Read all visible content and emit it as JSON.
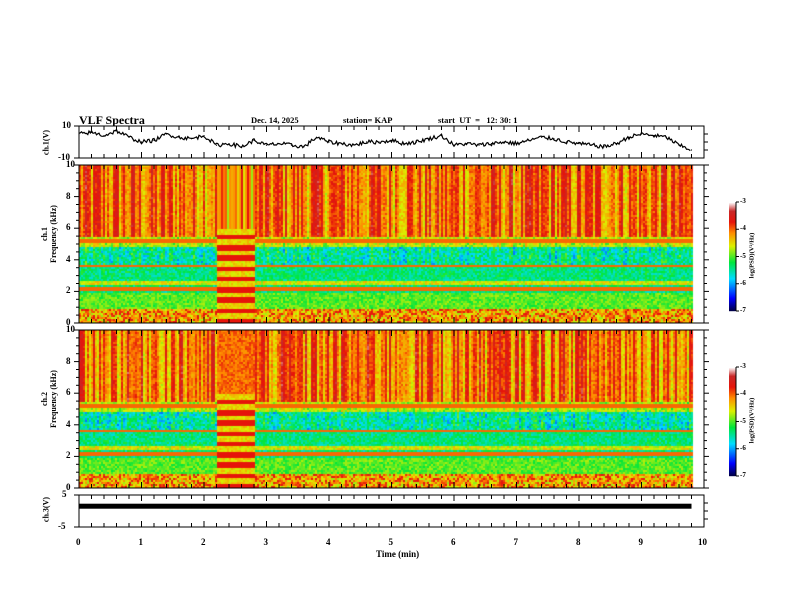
{
  "header": {
    "title": "VLF Spectra",
    "date": "Dec. 14, 2025",
    "station": "station= KAP",
    "start": "start  UT  =   12: 30: 1"
  },
  "chart_data": [
    {
      "type": "line",
      "name": "ch1-voltage",
      "ylabel": "ch.1(V)",
      "ylim": [
        -10,
        10
      ],
      "yticks": [
        "10",
        "-10"
      ],
      "x_minutes": [
        0.0,
        0.2,
        0.4,
        0.6,
        0.8,
        1.0,
        1.2,
        1.4,
        1.6,
        1.8,
        2.0,
        2.2,
        2.4,
        2.6,
        2.8,
        3.0,
        3.2,
        3.4,
        3.6,
        3.8,
        4.0,
        4.2,
        4.4,
        4.6,
        4.8,
        5.0,
        5.2,
        5.4,
        5.6,
        5.8,
        6.0,
        6.2,
        6.4,
        6.6,
        6.8,
        7.0,
        7.2,
        7.4,
        7.6,
        7.8,
        8.0,
        8.2,
        8.4,
        8.6,
        8.8,
        9.0,
        9.2,
        9.4,
        9.6,
        9.8
      ],
      "values": [
        5,
        6,
        4,
        7,
        3,
        0,
        1,
        5,
        3,
        2,
        4,
        -2,
        -1,
        -3,
        1,
        -2,
        -1,
        -2,
        -3,
        3,
        0,
        -1,
        -2,
        0,
        0,
        1,
        -1,
        0,
        2,
        4,
        -2,
        -1,
        -2,
        -1,
        0,
        -1,
        1,
        3,
        2,
        0,
        -1,
        -2,
        -3,
        -1,
        3,
        5,
        4,
        3,
        -2,
        -5
      ]
    },
    {
      "type": "heatmap",
      "name": "ch1-spectrogram",
      "label": "ch.1",
      "ylabel": "Frequency  (kHz)",
      "ylim": [
        0,
        10
      ],
      "yticks": [
        "0",
        "2",
        "4",
        "6",
        "8",
        "10"
      ],
      "colorbar": {
        "label": "log(PSD)(V²/Hz)",
        "range": [
          -7,
          -3
        ],
        "ticks": [
          "-3",
          "-4",
          "-5",
          "-6",
          "-7"
        ]
      }
    },
    {
      "type": "heatmap",
      "name": "ch2-spectrogram",
      "label": "ch.2",
      "ylabel": "Frequency  (kHz)",
      "ylim": [
        0,
        10
      ],
      "yticks": [
        "0",
        "2",
        "4",
        "6",
        "8",
        "10"
      ],
      "colorbar": {
        "label": "log(PSD)(V²/Hz)",
        "range": [
          -7,
          -3
        ],
        "ticks": [
          "-3",
          "-4",
          "-5",
          "-6",
          "-7"
        ]
      }
    },
    {
      "type": "line",
      "name": "ch3-voltage",
      "ylabel": "ch.3(V)",
      "ylim": [
        -5,
        5
      ],
      "yticks": [
        "5",
        "-5"
      ],
      "level": 1.5,
      "xrange_min": [
        0,
        9.8
      ]
    }
  ],
  "xaxis": {
    "label": "Time  (min)",
    "range": [
      0,
      10
    ],
    "ticks": [
      "0",
      "1",
      "2",
      "3",
      "4",
      "5",
      "6",
      "7",
      "8",
      "9",
      "10"
    ]
  }
}
